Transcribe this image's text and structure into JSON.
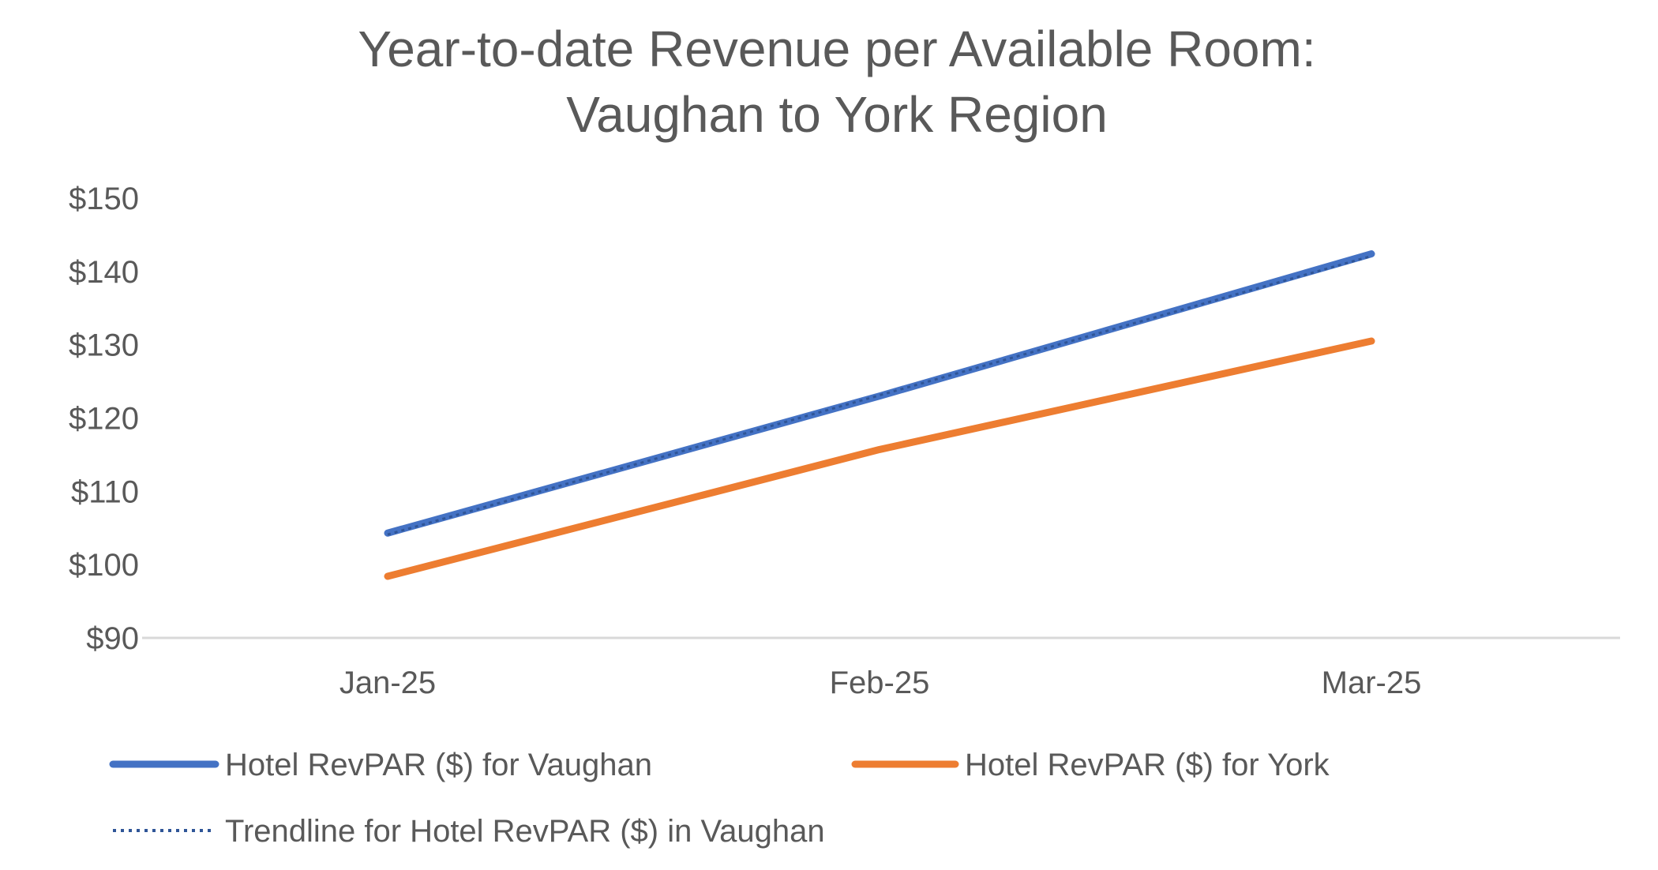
{
  "chart_data": {
    "type": "line",
    "title_lines": [
      "Year-to-date Revenue per Available Room:",
      "Vaughan to York Region"
    ],
    "xlabel": "",
    "ylabel": "",
    "categories": [
      "Jan-25",
      "Feb-25",
      "Mar-25"
    ],
    "y_tick_labels": [
      "$90",
      "$100",
      "$110",
      "$120",
      "$130",
      "$140",
      "$150"
    ],
    "ylim": [
      90,
      150
    ],
    "y_tick_values": [
      90,
      100,
      110,
      120,
      130,
      140,
      150
    ],
    "grid": false,
    "legend_position": "bottom",
    "series": [
      {
        "name": "Hotel RevPAR ($) for Vaughan",
        "values": [
          104.3,
          123.0,
          142.4
        ],
        "color": "#4472C4",
        "style": "solid"
      },
      {
        "name": "Hotel RevPAR ($) for York",
        "values": [
          98.4,
          115.7,
          130.5
        ],
        "color": "#ED7D31",
        "style": "solid"
      },
      {
        "name": "Trendline for Hotel RevPAR ($) in Vaughan",
        "values": [
          104.1,
          123.1,
          142.1
        ],
        "color": "#4472C4",
        "style": "dotted"
      }
    ]
  }
}
